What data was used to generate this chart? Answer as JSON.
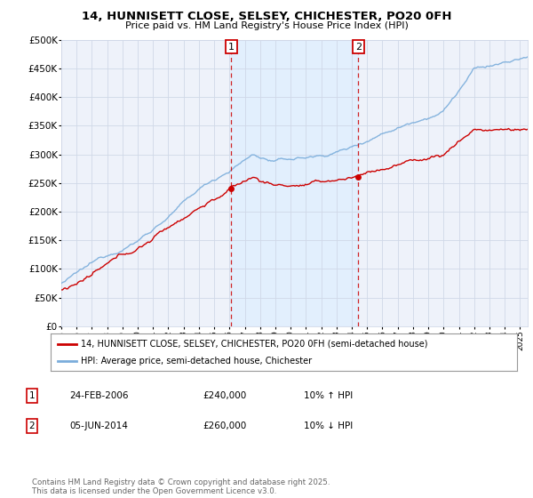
{
  "title": "14, HUNNISETT CLOSE, SELSEY, CHICHESTER, PO20 0FH",
  "subtitle": "Price paid vs. HM Land Registry's House Price Index (HPI)",
  "ylim": [
    0,
    500000
  ],
  "yticks": [
    0,
    50000,
    100000,
    150000,
    200000,
    250000,
    300000,
    350000,
    400000,
    450000,
    500000
  ],
  "ytick_labels": [
    "£0",
    "£50K",
    "£100K",
    "£150K",
    "£200K",
    "£250K",
    "£300K",
    "£350K",
    "£400K",
    "£450K",
    "£500K"
  ],
  "xlim_start": 1995.0,
  "xlim_end": 2025.5,
  "xticks": [
    1995,
    1996,
    1997,
    1998,
    1999,
    2000,
    2001,
    2002,
    2003,
    2004,
    2005,
    2006,
    2007,
    2008,
    2009,
    2010,
    2011,
    2012,
    2013,
    2014,
    2015,
    2016,
    2017,
    2018,
    2019,
    2020,
    2021,
    2022,
    2023,
    2024,
    2025
  ],
  "sale1_date": 2006.12,
  "sale1_price": 240000,
  "sale1_label": "1",
  "sale2_date": 2014.42,
  "sale2_price": 260000,
  "sale2_label": "2",
  "legend_line1": "14, HUNNISETT CLOSE, SELSEY, CHICHESTER, PO20 0FH (semi-detached house)",
  "legend_line2": "HPI: Average price, semi-detached house, Chichester",
  "table_row1": [
    "1",
    "24-FEB-2006",
    "£240,000",
    "10% ↑ HPI"
  ],
  "table_row2": [
    "2",
    "05-JUN-2014",
    "£260,000",
    "10% ↓ HPI"
  ],
  "footer": "Contains HM Land Registry data © Crown copyright and database right 2025.\nThis data is licensed under the Open Government Licence v3.0.",
  "red_color": "#cc0000",
  "blue_color": "#7aaddb",
  "fill_color": "#ddeeff",
  "grid_color": "#d0d8e8",
  "plot_bg": "#eef2fa"
}
